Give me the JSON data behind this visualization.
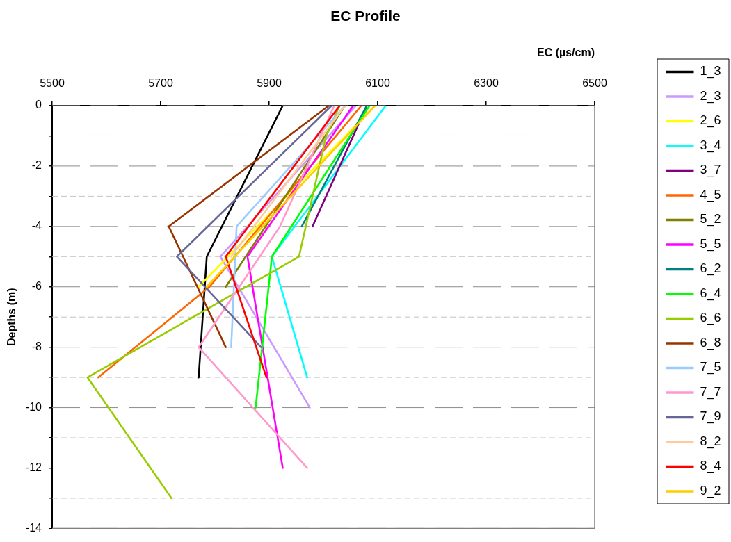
{
  "chart_data": {
    "type": "line",
    "title": "EC Profile",
    "xlabel": "EC (µs/cm)",
    "ylabel": "Depths (m)",
    "xlim": [
      5500,
      6500
    ],
    "xticks": [
      5500,
      5700,
      5900,
      6100,
      6300,
      6500
    ],
    "ylim": [
      -14,
      0
    ],
    "yticks": [
      -14,
      {
        "value": -13,
        "label": null
      },
      -12,
      {
        "value": -11,
        "label": null
      },
      -10,
      {
        "value": -9,
        "label": null
      },
      -8,
      {
        "value": -7,
        "label": null
      },
      -6,
      {
        "value": -5,
        "label": null
      },
      -4,
      {
        "value": -3,
        "label": null
      },
      -2,
      {
        "value": -1,
        "label": null
      },
      0
    ],
    "grid": "y",
    "legend": "right",
    "series": [
      {
        "name": "1_3",
        "color": "#000000",
        "x": [
          5925,
          5785,
          5770
        ],
        "values": [
          0,
          -5,
          -9
        ]
      },
      {
        "name": "2_3",
        "color": "#cc99ff",
        "x": [
          6060,
          5810,
          5975
        ],
        "values": [
          0,
          -5,
          -10
        ]
      },
      {
        "name": "2_6",
        "color": "#ffff00",
        "x": [
          6095,
          5770
        ],
        "values": [
          0,
          -6
        ]
      },
      {
        "name": "3_4",
        "color": "#00ffff",
        "x": [
          6115,
          5905,
          5970
        ],
        "values": [
          0,
          -5,
          -9
        ]
      },
      {
        "name": "3_7",
        "color": "#800080",
        "x": [
          6080,
          5980
        ],
        "values": [
          0,
          -4
        ]
      },
      {
        "name": "4_5",
        "color": "#ff6600",
        "x": [
          6070,
          5790,
          5585
        ],
        "values": [
          0,
          -6,
          -9
        ]
      },
      {
        "name": "5_2",
        "color": "#808000",
        "x": [
          6040,
          5820
        ],
        "values": [
          0,
          -6
        ]
      },
      {
        "name": "5_5",
        "color": "#ff00ff",
        "x": [
          6055,
          5860,
          5925
        ],
        "values": [
          0,
          -5,
          -12
        ]
      },
      {
        "name": "6_2",
        "color": "#008080",
        "x": [
          6080,
          5960
        ],
        "values": [
          0,
          -4
        ]
      },
      {
        "name": "6_4",
        "color": "#00ff00",
        "x": [
          6085,
          5905,
          5875
        ],
        "values": [
          0,
          -5,
          -10
        ]
      },
      {
        "name": "6_6",
        "color": "#99cc00",
        "x": [
          6030,
          6005,
          5955,
          5565,
          5720
        ],
        "values": [
          0,
          -1,
          -5,
          -9,
          -13
        ]
      },
      {
        "name": "6_8",
        "color": "#993300",
        "x": [
          6010,
          5715,
          5820
        ],
        "values": [
          0,
          -4,
          -8
        ]
      },
      {
        "name": "7_5",
        "color": "#99ccff",
        "x": [
          6040,
          5840,
          5830
        ],
        "values": [
          0,
          -4,
          -8
        ]
      },
      {
        "name": "7_7",
        "color": "#ff99cc",
        "x": [
          6020,
          5920,
          5770,
          5970
        ],
        "values": [
          0,
          -4,
          -8,
          -12
        ]
      },
      {
        "name": "7_9",
        "color": "#666699",
        "x": [
          6015,
          5730,
          5885
        ],
        "values": [
          0,
          -5,
          -8
        ]
      },
      {
        "name": "8_2",
        "color": "#ffcc99",
        "x": [
          6040,
          5830
        ],
        "values": [
          0,
          -5
        ]
      },
      {
        "name": "8_4",
        "color": "#ff0000",
        "x": [
          6030,
          5820,
          5895
        ],
        "values": [
          0,
          -5,
          -9
        ]
      },
      {
        "name": "9_2",
        "color": "#ffcc00",
        "x": [
          6095,
          5785
        ],
        "values": [
          0,
          -6
        ]
      }
    ]
  }
}
